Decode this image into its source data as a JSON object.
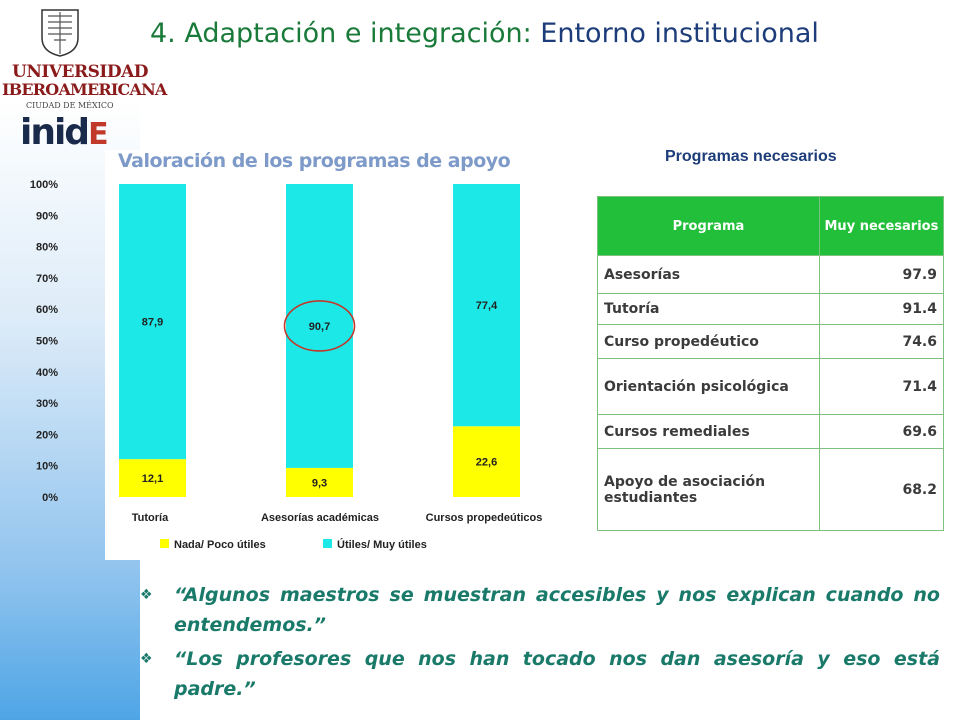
{
  "header": {
    "title_part1": "4. Adaptación e integración:",
    "title_part2": " Entorno institucional"
  },
  "logos": {
    "university_line1": "UNIVERSIDAD",
    "university_line2": "IBEROAMERICANA",
    "university_line3": "CIUDAD DE MÉXICO",
    "institute_main": "inid",
    "institute_tail": "E"
  },
  "chart_data": {
    "type": "bar",
    "stacked": true,
    "percent": true,
    "title": "Valoración de los programas de apoyo",
    "categories": [
      "Tutoría",
      "Asesorías académicas",
      "Cursos propedeúticos"
    ],
    "series": [
      {
        "name": "Nada/ Poco útiles",
        "values": [
          12.1,
          9.3,
          22.6
        ],
        "labels": [
          "12,1",
          "9,3",
          "22,6"
        ],
        "color": "#ffff00"
      },
      {
        "name": "Útiles/ Muy útiles",
        "values": [
          87.9,
          90.7,
          77.4
        ],
        "labels": [
          "87,9",
          "90,7",
          "77,4"
        ],
        "color": "#1de8e8"
      }
    ],
    "yticks": [
      "0%",
      "10%",
      "20%",
      "30%",
      "40%",
      "50%",
      "60%",
      "70%",
      "80%",
      "90%",
      "100%"
    ],
    "ylim": [
      0,
      100
    ],
    "highlight": {
      "category": "Asesorías académicas",
      "series": "Útiles/ Muy útiles",
      "color": "#c0392b"
    },
    "legend_position": "bottom",
    "grid": false
  },
  "table": {
    "title": "Programas necesarios",
    "headers": [
      "Programa",
      "Muy necesarios"
    ],
    "rows": [
      {
        "programa": "Asesorías",
        "valor": "97.9"
      },
      {
        "programa": "Tutoría",
        "valor": "91.4"
      },
      {
        "programa": "Curso propedéutico",
        "valor": "74.6"
      },
      {
        "programa": "Orientación psicológica",
        "valor": "71.4"
      },
      {
        "programa": "Cursos remediales",
        "valor": "69.6"
      },
      {
        "programa": "Apoyo de asociación estudiantes",
        "valor": "68.2"
      }
    ]
  },
  "quotes": [
    "“Algunos maestros se muestran accesibles y nos explican cuando no entendemos.”",
    "“Los profesores que nos han tocado nos dan asesoría y eso está padre.”"
  ],
  "icons": {
    "bullet": "diamond-bullet-icon"
  }
}
